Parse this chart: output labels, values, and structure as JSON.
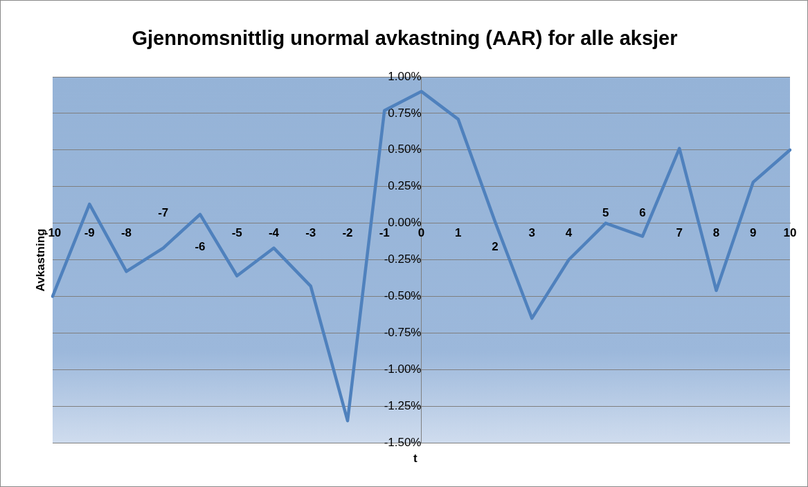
{
  "chart_data": {
    "type": "line",
    "title": "Gjennomsnittlig unormal avkastning (AAR) for alle aksjer",
    "xlabel": "t",
    "ylabel": "Avkastning",
    "categories": [
      "-10",
      "-9",
      "-8",
      "-7",
      "-6",
      "-5",
      "-4",
      "-3",
      "-2",
      "-1",
      "0",
      "1",
      "2",
      "3",
      "4",
      "5",
      "6",
      "7",
      "8",
      "9",
      "10"
    ],
    "series": [
      {
        "color": "#4f81bd",
        "values": [
          -0.5,
          0.13,
          -0.33,
          -0.17,
          0.06,
          -0.36,
          -0.17,
          -0.43,
          -1.35,
          0.77,
          0.9,
          0.71,
          0.01,
          -0.65,
          -0.25,
          0.0,
          -0.09,
          0.51,
          -0.46,
          0.28,
          0.5
        ]
      }
    ],
    "ylim": [
      -1.5,
      1.0
    ],
    "yticks": [
      {
        "value": -1.5,
        "label": "-1.50%"
      },
      {
        "value": -1.25,
        "label": "-1.25%"
      },
      {
        "value": -1.0,
        "label": "-1.00%"
      },
      {
        "value": -0.75,
        "label": "-0.75%"
      },
      {
        "value": -0.5,
        "label": "-0.50%"
      },
      {
        "value": -0.25,
        "label": "-0.25%"
      },
      {
        "value": 0,
        "label": "0.00%"
      },
      {
        "value": 0.25,
        "label": "0.25%"
      },
      {
        "value": 0.5,
        "label": "0.50%"
      },
      {
        "value": 0.75,
        "label": "0.75%"
      },
      {
        "value": 1.0,
        "label": "1.00%"
      }
    ],
    "grid": "y",
    "legend": false,
    "marker": "none",
    "line_style": "solid"
  }
}
